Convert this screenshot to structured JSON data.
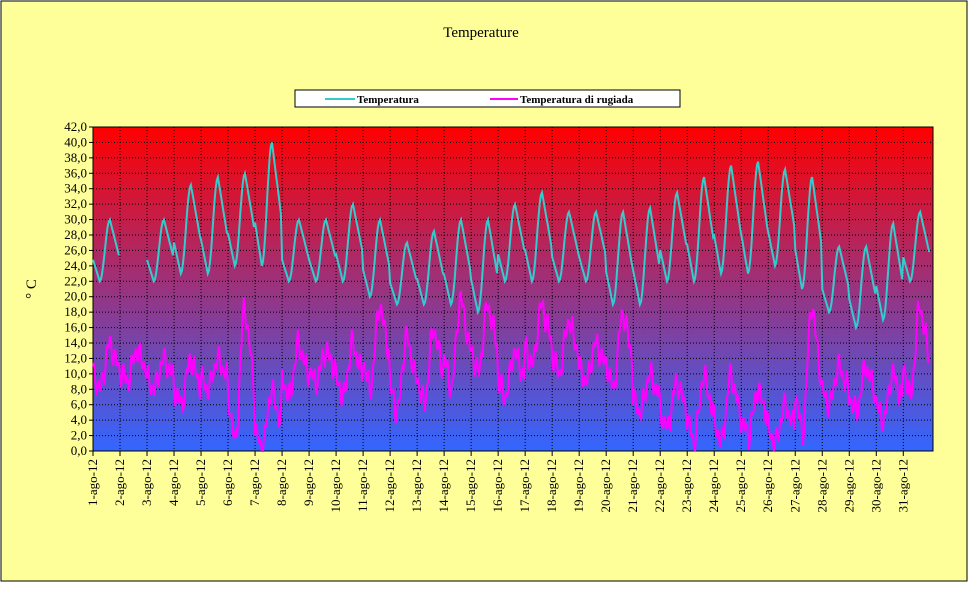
{
  "colors": {
    "background": "#FFFF99",
    "plot_top": "#FF0000",
    "plot_bottom": "#3366FF",
    "temperature": "#33CCCC",
    "dew_point": "#FF00FF",
    "gridline": "#000000"
  },
  "chart_data": {
    "type": "line",
    "title": "Temperature",
    "xlabel": "",
    "ylabel": "° C",
    "legend_position": "top",
    "grid": true,
    "ylim": [
      0,
      42
    ],
    "y_ticks": [
      "0,0",
      "2,0",
      "4,0",
      "6,0",
      "8,0",
      "10,0",
      "12,0",
      "14,0",
      "16,0",
      "18,0",
      "20,0",
      "22,0",
      "24,0",
      "26,0",
      "28,0",
      "30,0",
      "32,0",
      "34,0",
      "36,0",
      "38,0",
      "40,0",
      "42,0"
    ],
    "categories": [
      "1-ago-12",
      "2-ago-12",
      "3-ago-12",
      "4-ago-12",
      "5-ago-12",
      "6-ago-12",
      "7-ago-12",
      "8-ago-12",
      "9-ago-12",
      "10-ago-12",
      "11-ago-12",
      "12-ago-12",
      "13-ago-12",
      "14-ago-12",
      "15-ago-12",
      "16-ago-12",
      "17-ago-12",
      "18-ago-12",
      "19-ago-12",
      "20-ago-12",
      "21-ago-12",
      "22-ago-12",
      "23-ago-12",
      "24-ago-12",
      "25-ago-12",
      "26-ago-12",
      "27-ago-12",
      "28-ago-12",
      "29-ago-12",
      "30-ago-12",
      "31-ago-12"
    ],
    "series": [
      {
        "name": "Temperatura",
        "color": "#33CCCC",
        "daily_min": [
          22,
          22,
          22,
          23,
          23,
          24,
          24,
          22,
          22,
          22,
          20,
          19,
          19,
          19,
          18,
          22,
          22,
          22,
          22,
          19,
          19,
          22,
          22,
          23,
          23,
          24,
          21,
          18,
          16,
          17,
          22
        ],
        "daily_max": [
          30,
          null,
          30,
          34.5,
          35.5,
          36,
          40,
          30,
          30,
          32,
          30,
          27,
          28.5,
          30,
          30,
          32,
          33.5,
          31,
          31,
          31,
          31.5,
          33.5,
          35.5,
          37,
          37.5,
          36.5,
          35.5,
          26.5,
          26.5,
          29.5,
          31
        ]
      },
      {
        "name": "Temperatura di rugiada",
        "color": "#FF00FF",
        "daily_min": [
          8,
          9,
          8,
          6,
          8,
          1,
          0,
          7,
          9,
          7,
          8,
          5,
          6,
          8,
          10,
          7,
          11,
          10,
          9,
          8,
          5,
          3,
          1,
          1,
          2,
          1,
          2,
          6,
          5,
          4,
          7
        ],
        "daily_max": [
          14,
          13,
          12,
          12,
          12,
          19,
          8,
          14,
          13,
          14,
          19,
          15,
          16,
          20,
          19,
          13,
          19,
          17,
          14,
          18,
          10,
          9,
          10,
          10,
          8,
          6,
          19,
          11,
          11,
          10,
          19
        ]
      }
    ]
  }
}
